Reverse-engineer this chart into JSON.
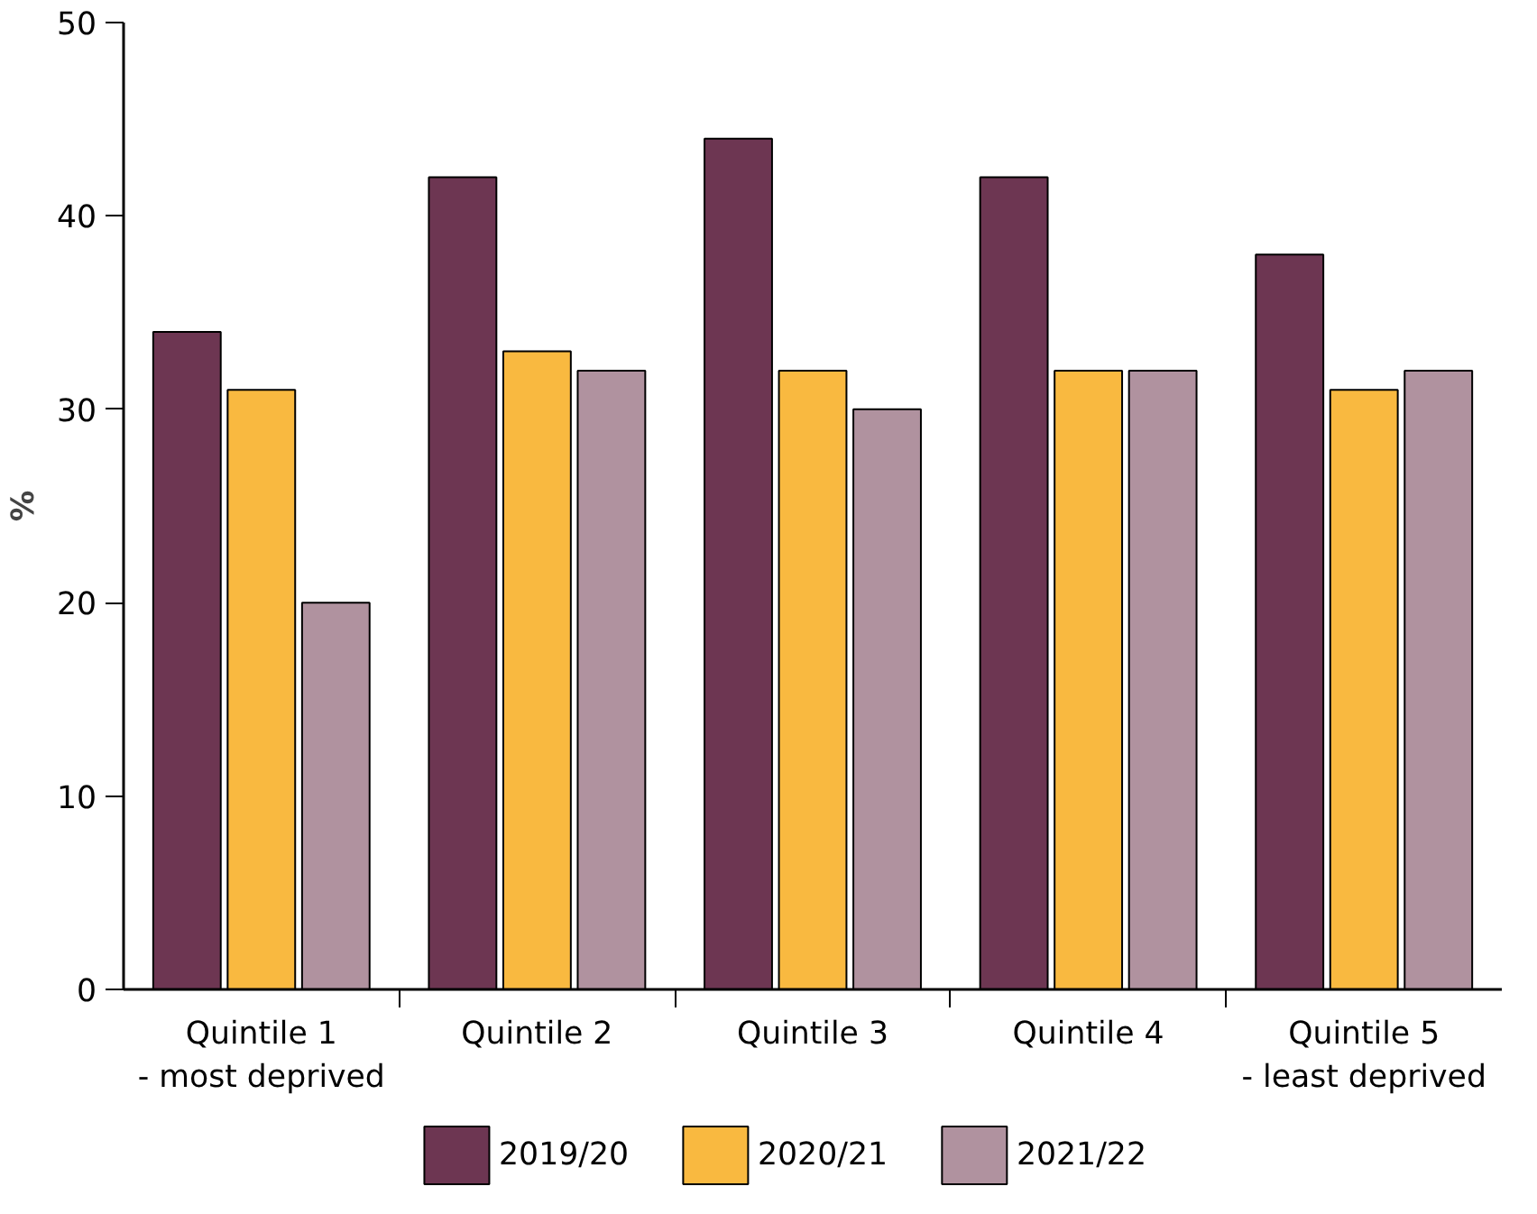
{
  "chart_data": {
    "type": "bar",
    "ylabel": "%",
    "categories": [
      "Quintile 1\n- most deprived",
      "Quintile 2",
      "Quintile 3",
      "Quintile 4",
      "Quintile 5\n- least deprived"
    ],
    "series": [
      {
        "name": "2019/20",
        "color": "#6d3652",
        "values": [
          34,
          42,
          44,
          42,
          38
        ]
      },
      {
        "name": "2020/21",
        "color": "#f9b940",
        "values": [
          31,
          33,
          32,
          32,
          31
        ]
      },
      {
        "name": "2021/22",
        "color": "#b0929f",
        "values": [
          20,
          32,
          30,
          32,
          32
        ]
      }
    ],
    "ylim": [
      0,
      50
    ],
    "yticks": [
      0,
      10,
      20,
      30,
      40,
      50
    ],
    "grid": false,
    "legend": "bottom"
  }
}
